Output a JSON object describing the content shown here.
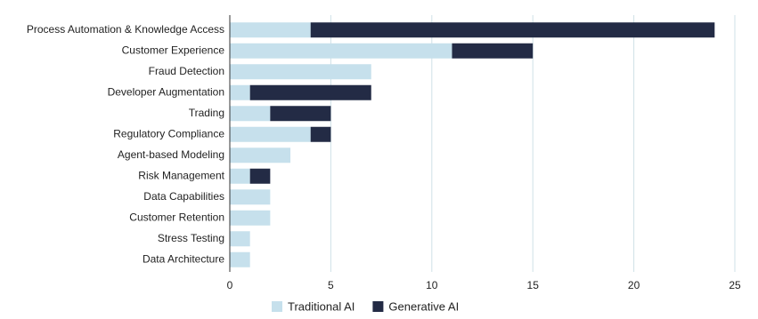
{
  "chart_data": {
    "type": "bar",
    "orientation": "horizontal",
    "stacked": true,
    "categories": [
      "Process Automation & Knowledge Access",
      "Customer Experience",
      "Fraud Detection",
      "Developer Augmentation",
      "Trading",
      "Regulatory Compliance",
      "Agent-based Modeling",
      "Risk Management",
      "Data Capabilities",
      "Customer Retention",
      "Stress Testing",
      "Data Architecture"
    ],
    "series": [
      {
        "name": "Traditional AI",
        "color": "#c6e0ec",
        "values": [
          4,
          11,
          7,
          1,
          2,
          4,
          3,
          1,
          2,
          2,
          1,
          1
        ]
      },
      {
        "name": "Generative AI",
        "color": "#232b45",
        "values": [
          20,
          4,
          0,
          6,
          3,
          1,
          0,
          1,
          0,
          0,
          0,
          0
        ]
      }
    ],
    "xlim": [
      0,
      25
    ],
    "xticks": [
      0,
      5,
      10,
      15,
      20,
      25
    ],
    "grid": true,
    "legend": "bottom"
  }
}
